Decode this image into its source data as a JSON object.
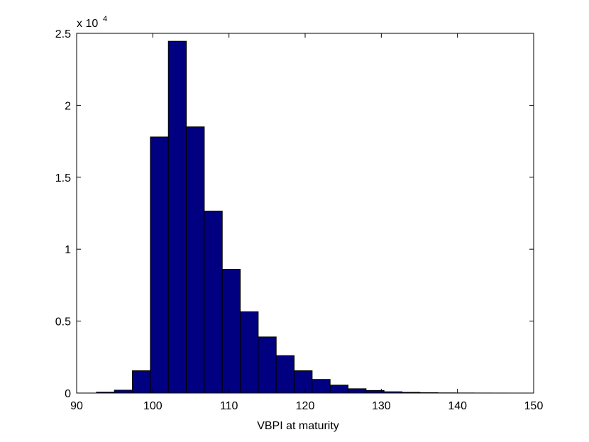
{
  "chart_data": {
    "type": "bar",
    "title": "",
    "xlabel": "VBPI at maturity",
    "ylabel": "",
    "y_exponent_label": "x 10",
    "y_exponent_power": "4",
    "xlim": [
      90,
      150
    ],
    "ylim": [
      0,
      25000
    ],
    "x_ticks": [
      90,
      100,
      110,
      120,
      130,
      140,
      150
    ],
    "x_tick_labels": [
      "90",
      "100",
      "110",
      "120",
      "130",
      "140",
      "150"
    ],
    "y_ticks": [
      0,
      5000,
      10000,
      15000,
      20000,
      25000
    ],
    "y_tick_labels": [
      "0",
      "0.5",
      "1",
      "1.5",
      "2",
      "2.5"
    ],
    "bin_edges": [
      92.6,
      94.96,
      97.32,
      99.68,
      102.04,
      104.4,
      106.76,
      109.12,
      111.48,
      113.84,
      116.2,
      118.56,
      120.92,
      123.28,
      125.64,
      128.0,
      130.36,
      132.72,
      135.08,
      137.44,
      139.8,
      142.16,
      144.52,
      146.88
    ],
    "counts": [
      60,
      200,
      1550,
      17800,
      24450,
      18500,
      12650,
      8600,
      5650,
      3900,
      2600,
      1550,
      950,
      550,
      300,
      180,
      90,
      50,
      25,
      12,
      6,
      3,
      1
    ],
    "bar_color": "#000080",
    "edge_color": "#000000",
    "grid": false,
    "box": true
  }
}
